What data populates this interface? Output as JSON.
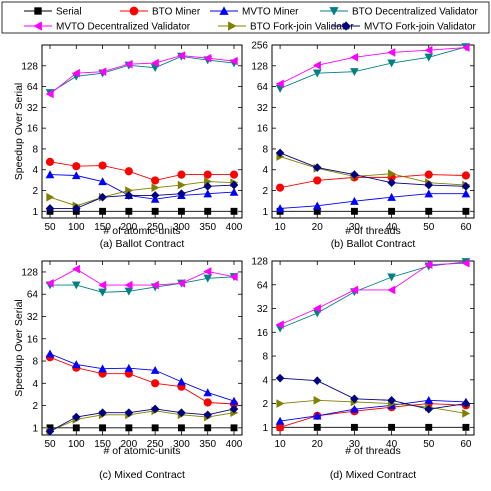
{
  "chart_data": [
    {
      "type": "line",
      "title": "",
      "caption": "(a) Ballot Contract",
      "xlabel": "# of atomic-units",
      "ylabel": "Speedup Over Serial",
      "y_scale": "log2",
      "ylim": [
        0.8,
        256
      ],
      "yticks": [
        1,
        2,
        4,
        8,
        16,
        32,
        64,
        128
      ],
      "x": [
        50,
        100,
        150,
        200,
        250,
        300,
        350,
        400
      ],
      "series": [
        {
          "name": "Serial",
          "values": [
            1,
            1,
            1,
            1,
            1,
            1,
            1,
            1
          ]
        },
        {
          "name": "BTO Miner",
          "values": [
            5.2,
            4.5,
            4.6,
            3.8,
            2.8,
            3.4,
            3.4,
            3.4
          ]
        },
        {
          "name": "MVTO Miner",
          "values": [
            3.4,
            3.3,
            2.7,
            1.7,
            1.5,
            1.7,
            1.8,
            1.9
          ]
        },
        {
          "name": "BTO Decentralized Validator",
          "values": [
            52,
            90,
            100,
            130,
            120,
            175,
            155,
            140
          ]
        },
        {
          "name": "MVTO Decentralized Validator",
          "values": [
            50,
            100,
            105,
            135,
            140,
            180,
            165,
            150
          ]
        },
        {
          "name": "BTO Fork-join Validator",
          "values": [
            1.6,
            1.2,
            1.6,
            2.0,
            2.2,
            2.4,
            2.7,
            2.6
          ]
        },
        {
          "name": "MVTO Fork-join Validator",
          "values": [
            1.1,
            1.1,
            1.6,
            1.7,
            1.7,
            1.8,
            2.3,
            2.4
          ]
        }
      ]
    },
    {
      "type": "line",
      "title": "",
      "caption": "(b) Ballot Contract",
      "xlabel": "# of threads",
      "ylabel": "",
      "y_scale": "log2",
      "ylim": [
        0.8,
        256
      ],
      "yticks": [
        1,
        2,
        4,
        8,
        16,
        32,
        64,
        128,
        256
      ],
      "x": [
        10,
        20,
        30,
        40,
        50,
        60
      ],
      "series": [
        {
          "name": "Serial",
          "values": [
            1,
            1,
            1,
            1,
            1,
            1
          ]
        },
        {
          "name": "BTO Miner",
          "values": [
            2.2,
            2.8,
            3.1,
            3.1,
            3.4,
            3.3
          ]
        },
        {
          "name": "MVTO Miner",
          "values": [
            1.1,
            1.2,
            1.4,
            1.6,
            1.8,
            1.8
          ]
        },
        {
          "name": "BTO Decentralized Validator",
          "values": [
            60,
            100,
            105,
            140,
            170,
            240
          ]
        },
        {
          "name": "MVTO Decentralized Validator",
          "values": [
            70,
            130,
            170,
            200,
            215,
            235
          ]
        },
        {
          "name": "BTO Fork-join Validator",
          "values": [
            6.2,
            4.2,
            3.2,
            3.5,
            2.6,
            2.4
          ]
        },
        {
          "name": "MVTO Fork-join Validator",
          "values": [
            7.0,
            4.3,
            3.4,
            2.6,
            2.4,
            2.3
          ]
        }
      ]
    },
    {
      "type": "line",
      "title": "",
      "caption": "(c) Mixed Contract",
      "xlabel": "# of atomic-units",
      "ylabel": "Speedup Over Serial",
      "y_scale": "log2",
      "ylim": [
        0.8,
        180
      ],
      "yticks": [
        1,
        2,
        4,
        8,
        16,
        32,
        64,
        128
      ],
      "x": [
        50,
        100,
        150,
        200,
        250,
        300,
        350,
        400
      ],
      "series": [
        {
          "name": "Serial",
          "values": [
            1,
            1,
            1,
            1,
            1,
            1,
            1,
            1
          ]
        },
        {
          "name": "BTO Miner",
          "values": [
            9.0,
            6.5,
            5.4,
            5.4,
            4.0,
            3.6,
            2.2,
            2.1
          ]
        },
        {
          "name": "MVTO Miner",
          "values": [
            10.0,
            7.2,
            6.3,
            6.4,
            6.0,
            4.2,
            3.0,
            2.3
          ]
        },
        {
          "name": "BTO Decentralized Validator",
          "values": [
            85,
            85,
            68,
            70,
            80,
            90,
            105,
            110
          ]
        },
        {
          "name": "MVTO Decentralized Validator",
          "values": [
            90,
            140,
            85,
            85,
            85,
            90,
            130,
            110
          ]
        },
        {
          "name": "BTO Fork-join Validator",
          "values": [
            0.9,
            1.3,
            1.5,
            1.5,
            1.7,
            1.5,
            1.4,
            1.6
          ]
        },
        {
          "name": "MVTO Fork-join Validator",
          "values": [
            0.9,
            1.4,
            1.6,
            1.6,
            1.8,
            1.6,
            1.5,
            1.8
          ]
        }
      ]
    },
    {
      "type": "line",
      "title": "",
      "caption": "(d) Mixed Contract",
      "xlabel": "# of threads",
      "ylabel": "",
      "y_scale": "log2",
      "ylim": [
        0.8,
        128
      ],
      "yticks": [
        1,
        2,
        4,
        8,
        16,
        32,
        64,
        128
      ],
      "x": [
        10,
        20,
        30,
        40,
        50,
        60
      ],
      "series": [
        {
          "name": "Serial",
          "values": [
            1,
            1,
            1,
            1,
            1,
            1
          ]
        },
        {
          "name": "BTO Miner",
          "values": [
            1.0,
            1.4,
            1.6,
            1.8,
            2.0,
            1.9
          ]
        },
        {
          "name": "MVTO Miner",
          "values": [
            1.2,
            1.4,
            1.7,
            1.9,
            2.2,
            2.1
          ]
        },
        {
          "name": "BTO Decentralized Validator",
          "values": [
            18,
            28,
            52,
            80,
            110,
            125
          ]
        },
        {
          "name": "MVTO Decentralized Validator",
          "values": [
            20,
            32,
            55,
            55,
            115,
            120
          ]
        },
        {
          "name": "BTO Fork-join Validator",
          "values": [
            2.0,
            2.2,
            2.1,
            2.0,
            1.8,
            1.5
          ]
        },
        {
          "name": "MVTO Fork-join Validator",
          "values": [
            4.2,
            3.9,
            2.3,
            2.2,
            1.7,
            2.0
          ]
        }
      ]
    }
  ],
  "legend": {
    "placement": "top",
    "entries": [
      {
        "name": "Serial",
        "color": "#000000",
        "marker": "square"
      },
      {
        "name": "BTO Miner",
        "color": "#ff0000",
        "marker": "circle"
      },
      {
        "name": "MVTO Miner",
        "color": "#0000ff",
        "marker": "triangle-up"
      },
      {
        "name": "BTO Decentralized Validator",
        "color": "#008080",
        "marker": "triangle-down"
      },
      {
        "name": "MVTO Decentralized Validator",
        "color": "#ff00ff",
        "marker": "triangle-left"
      },
      {
        "name": "BTO Fork-join Validator",
        "color": "#808000",
        "marker": "triangle-right"
      },
      {
        "name": "MVTO Fork-join Validator",
        "color": "#000080",
        "marker": "diamond"
      }
    ]
  }
}
